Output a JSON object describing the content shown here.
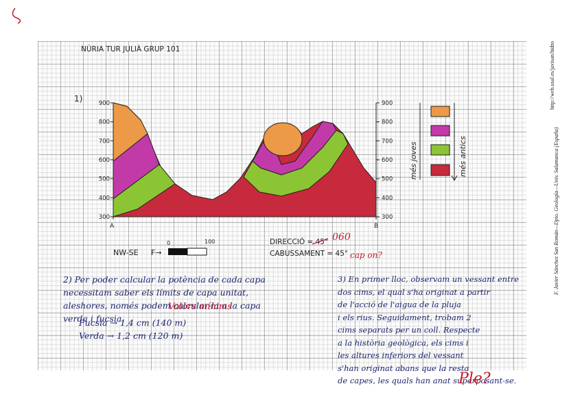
{
  "header": {
    "title": "NÚRIA TUR JULIÀ GRUP 101"
  },
  "exercise1": {
    "number": "1)",
    "left_axis": [
      "900",
      "800",
      "700",
      "600",
      "500",
      "400",
      "300"
    ],
    "right_axis": [
      "900",
      "800",
      "700",
      "600",
      "500",
      "400",
      "300"
    ],
    "start_label": "A",
    "end_label": "B",
    "legend": {
      "younger": "més joves",
      "older": "més antics"
    },
    "orientation": "NW-SE",
    "scale_prefix": "F→",
    "scale": {
      "start": "0",
      "end": "100"
    },
    "direction": "DIRECCIÓ = 45°",
    "direction_correction": "060",
    "dip": "CABUSSAMENT = 45°",
    "dip_correction": "cap on?"
  },
  "exercise2": {
    "lines": [
      "2) Per poder calcular la potència de cada capa",
      "necessitam saber els límits de capa unitat,",
      "aleshores, només podem calcular-la a la capa",
      "verda i fucsia."
    ],
    "correction": "Valors mínims",
    "results": [
      "Fucsia → 1,4 cm (140 m)",
      "Verda → 1,2 cm (120 m)"
    ]
  },
  "exercise3": {
    "lines": [
      "3) En primer lloc, observam un vessant entre",
      "dos cims, el qual s'ha originat a partir",
      "de l'acció de l'aigua de la pluja",
      "i els rius. Seguidament, trobam 2",
      "cims separats per un coll. Respecte",
      "a la història geològica, els cims i",
      "les altures inferiors del vessant",
      "s'han originat abans que la resta",
      "de capes, les quals han anat superposant-se."
    ],
    "correction": "Ple?"
  },
  "sidebar": {
    "url": "http://web.usal.es/javisan/hidro",
    "credit": "F. Javier Sánchez San Román—Dpto. Geología—Univ. Salamanca (España)"
  }
}
